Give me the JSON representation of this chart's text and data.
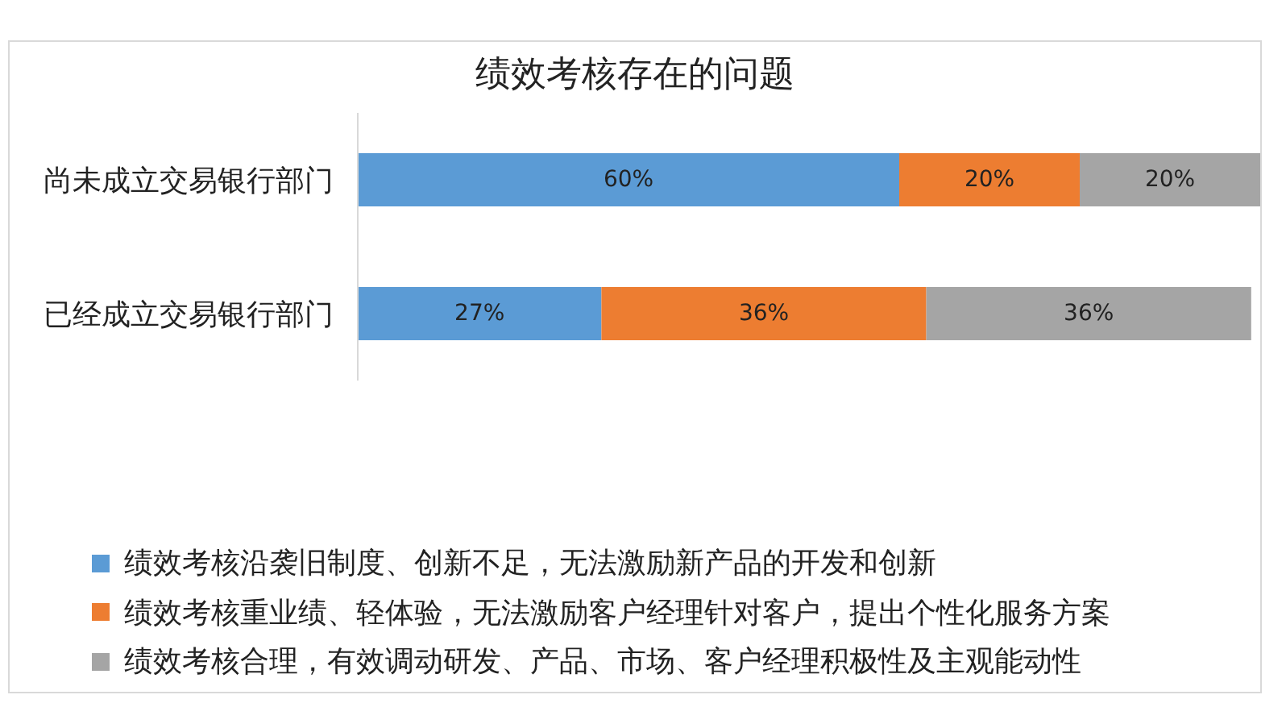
{
  "chart_data": {
    "type": "bar",
    "orientation": "horizontal",
    "stacked": true,
    "title": "绩效考核存在的问题",
    "categories": [
      "尚未成立交易银行部门",
      "已经成立交易银行部门"
    ],
    "series": [
      {
        "name": "绩效考核沿袭旧制度、创新不足，无法激励新产品的开发和创新",
        "color": "#5b9bd5",
        "values": [
          60,
          27
        ],
        "value_labels": [
          "60%",
          "27%"
        ]
      },
      {
        "name": "绩效考核重业绩、轻体验，无法激励客户经理针对客户，提出个性化服务方案",
        "color": "#ed7d31",
        "values": [
          20,
          36
        ],
        "value_labels": [
          "20%",
          "36%"
        ]
      },
      {
        "name": "绩效考核合理，有效调动研发、产品、市场、客户经理积极性及主观能动性",
        "color": "#a5a5a5",
        "values": [
          20,
          36
        ],
        "value_labels": [
          "20%",
          "36%"
        ]
      }
    ],
    "xlim": [
      0,
      100
    ],
    "tick_labels": "y",
    "legend": "bottom"
  }
}
